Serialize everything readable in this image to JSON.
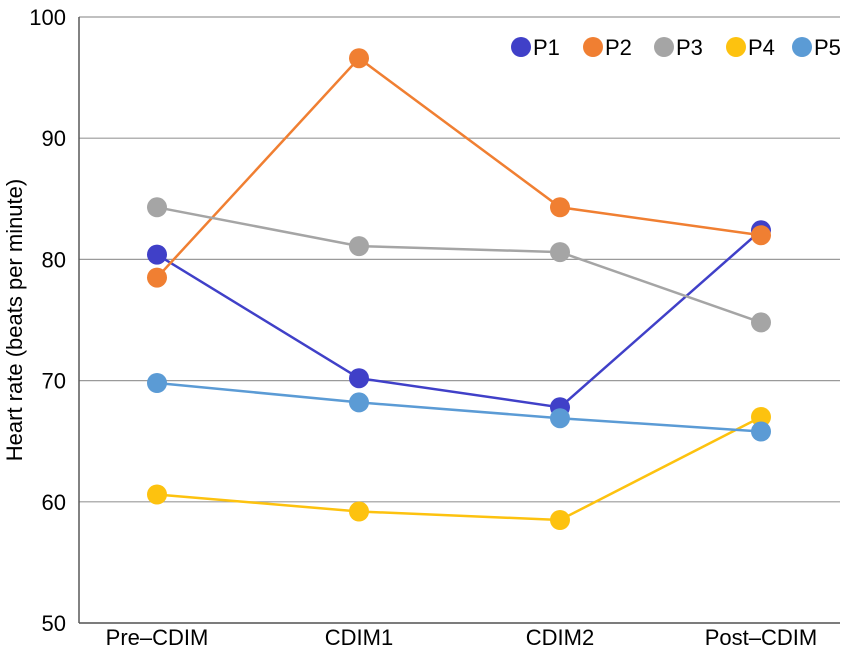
{
  "chart_data": {
    "type": "line",
    "title": "",
    "xlabel": "",
    "ylabel": "Heart rate (beats per minute)",
    "ylim": [
      50,
      100
    ],
    "yticks": [
      50,
      60,
      70,
      80,
      90,
      100
    ],
    "grid": true,
    "legend_position": "top-right",
    "categories": [
      "Pre–CDIM",
      "CDIM1",
      "CDIM2",
      "Post–CDIM"
    ],
    "series": [
      {
        "name": "P1",
        "color": "#4040c8",
        "values": [
          80.4,
          70.2,
          67.8,
          82.4
        ]
      },
      {
        "name": "P2",
        "color": "#f07f32",
        "values": [
          78.5,
          96.6,
          84.3,
          82.0
        ]
      },
      {
        "name": "P3",
        "color": "#a5a5a5",
        "values": [
          84.3,
          81.1,
          80.6,
          74.8
        ]
      },
      {
        "name": "P4",
        "color": "#fdc20f",
        "values": [
          60.6,
          59.2,
          58.5,
          67.0
        ]
      },
      {
        "name": "P5",
        "color": "#5b9bd5",
        "values": [
          69.8,
          68.2,
          66.9,
          65.8
        ]
      }
    ]
  }
}
